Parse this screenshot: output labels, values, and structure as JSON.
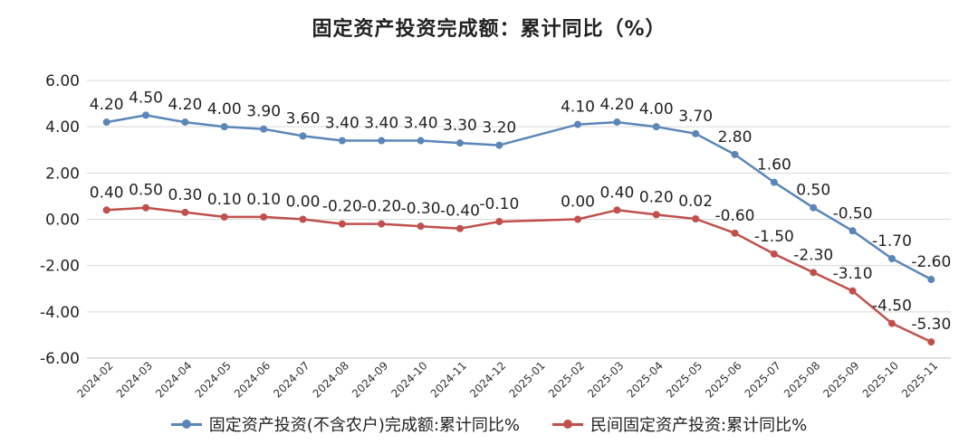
{
  "chart_data": {
    "type": "line",
    "title": "固定资产投资完成额：累计同比（%）",
    "categories": [
      "2024-02",
      "2024-03",
      "2024-04",
      "2024-05",
      "2024-06",
      "2024-07",
      "2024-08",
      "2024-09",
      "2024-10",
      "2024-11",
      "2024-12",
      "2025-01",
      "2025-02",
      "2025-03",
      "2025-04",
      "2025-05",
      "2025-06",
      "2025-07",
      "2025-08",
      "2025-09",
      "2025-10",
      "2025-11"
    ],
    "yticks": [
      "6.00",
      "4.00",
      "2.00",
      "0.00",
      "-2.00",
      "-4.00",
      "-6.00"
    ],
    "ylim": [
      -6,
      6
    ],
    "grid": true,
    "legend_position": "bottom",
    "series": [
      {
        "name": "固定资产投资(不含农户)完成额:累计同比%",
        "color": "#5b86b8",
        "values": [
          4.2,
          4.5,
          4.2,
          4.0,
          3.9,
          3.6,
          3.4,
          3.4,
          3.4,
          3.3,
          3.2,
          null,
          4.1,
          4.2,
          4.0,
          3.7,
          2.8,
          1.6,
          0.5,
          -0.5,
          -1.7,
          -2.6
        ],
        "labels": [
          "4.20",
          "4.50",
          "4.20",
          "4.00",
          "3.90",
          "3.60",
          "3.40",
          "3.40",
          "3.40",
          "3.30",
          "3.20",
          null,
          "4.10",
          "4.20",
          "4.00",
          "3.70",
          "2.80",
          "1.60",
          "0.50",
          "-0.50",
          "-1.70",
          "-2.60"
        ]
      },
      {
        "name": "民间固定资产投资:累计同比%",
        "color": "#c0504d",
        "values": [
          0.4,
          0.5,
          0.3,
          0.1,
          0.1,
          0.0,
          -0.2,
          -0.2,
          -0.3,
          -0.4,
          -0.1,
          null,
          0.0,
          0.4,
          0.2,
          0.02,
          -0.6,
          -1.5,
          -2.3,
          -3.1,
          -4.5,
          -5.3
        ],
        "labels": [
          "0.40",
          "0.50",
          "0.30",
          "0.10",
          "0.10",
          "0.00",
          "-0.20",
          "-0.20",
          "-0.30",
          "-0.40",
          "-0.10",
          null,
          "0.00",
          "0.40",
          "0.20",
          "0.02",
          "-0.60",
          "-1.50",
          "-2.30",
          "-3.10",
          "-4.50",
          "-5.30"
        ]
      }
    ]
  }
}
